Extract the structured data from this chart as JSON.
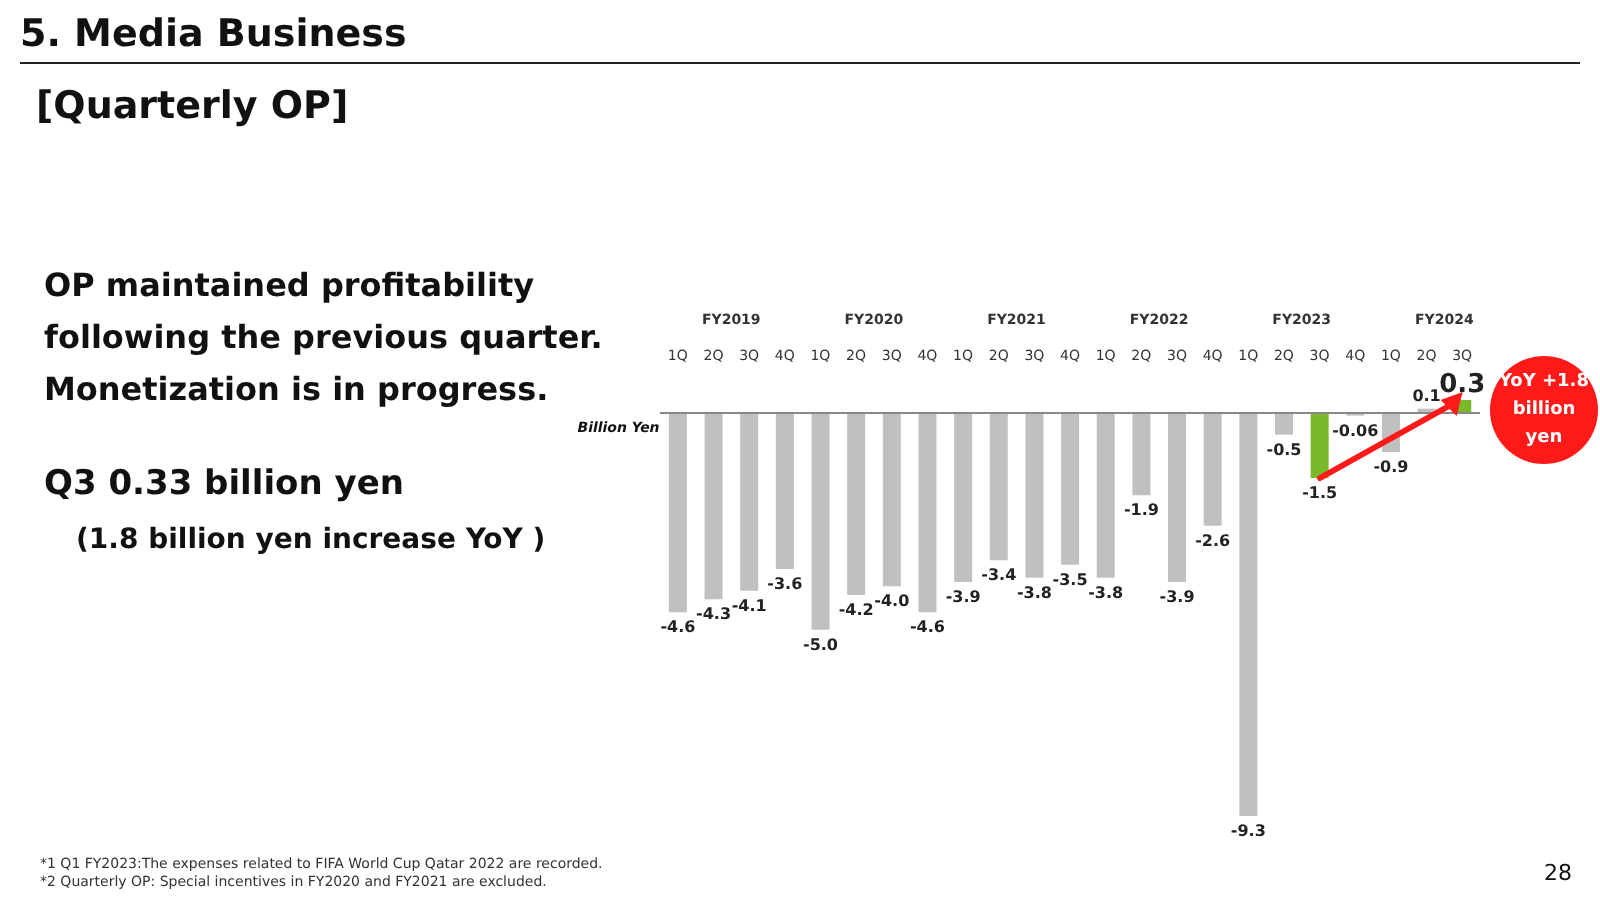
{
  "chart_data": {
    "type": "bar",
    "title": "5. Media Business",
    "subtitle": "[Quarterly OP]",
    "ylabel": "Billion Yen",
    "categories": [
      "1Q",
      "2Q",
      "3Q",
      "4Q",
      "1Q",
      "2Q",
      "3Q",
      "4Q",
      "1Q",
      "2Q",
      "3Q",
      "4Q",
      "1Q",
      "2Q",
      "3Q",
      "4Q",
      "1Q",
      "2Q",
      "3Q",
      "4Q",
      "1Q",
      "2Q",
      "3Q"
    ],
    "values": [
      -4.6,
      -4.3,
      -4.1,
      -3.6,
      -5.0,
      -4.2,
      -4.0,
      -4.6,
      -3.9,
      -3.4,
      -3.8,
      -3.5,
      -3.8,
      -1.9,
      -3.9,
      -2.6,
      -9.3,
      -0.5,
      -1.5,
      -0.06,
      -0.9,
      0.1,
      0.3
    ],
    "colors": [
      "#c0c0c0",
      "#c0c0c0",
      "#c0c0c0",
      "#c0c0c0",
      "#c0c0c0",
      "#c0c0c0",
      "#c0c0c0",
      "#c0c0c0",
      "#c0c0c0",
      "#c0c0c0",
      "#c0c0c0",
      "#c0c0c0",
      "#c0c0c0",
      "#c0c0c0",
      "#c0c0c0",
      "#c0c0c0",
      "#c0c0c0",
      "#c0c0c0",
      "#7ab929",
      "#c0c0c0",
      "#c0c0c0",
      "#c0c0c0",
      "#7ab929"
    ],
    "value_labels": [
      "-4.6",
      "-4.3",
      "-4.1",
      "-3.6",
      "-5.0",
      "-4.2",
      "-4.0",
      "-4.6",
      "-3.9",
      "-3.4",
      "-3.8",
      "-3.5",
      "-3.8",
      "-1.9",
      "-3.9",
      "-2.6",
      "-9.3",
      "-0.5",
      "-1.5",
      "-0.06",
      "-0.9",
      "0.1",
      "0.3"
    ],
    "annotations": [
      "OP maintained profitability following the previous quarter. Monetization is in progress.",
      "Q3 0.33 billion yen",
      "(1.8 billion yen increase YoY )",
      "FY2019",
      "FY2020",
      "FY2021",
      "FY2022",
      "FY2023",
      "FY2024",
      "YoY +1.8 billion yen",
      "*1 Q1 FY2023:The expenses related to FIFA World Cup Qatar 2022 are recorded.",
      "*2 Quarterly OP: Special incentives in FY2020 and FY2021 are excluded.",
      "28"
    ]
  }
}
